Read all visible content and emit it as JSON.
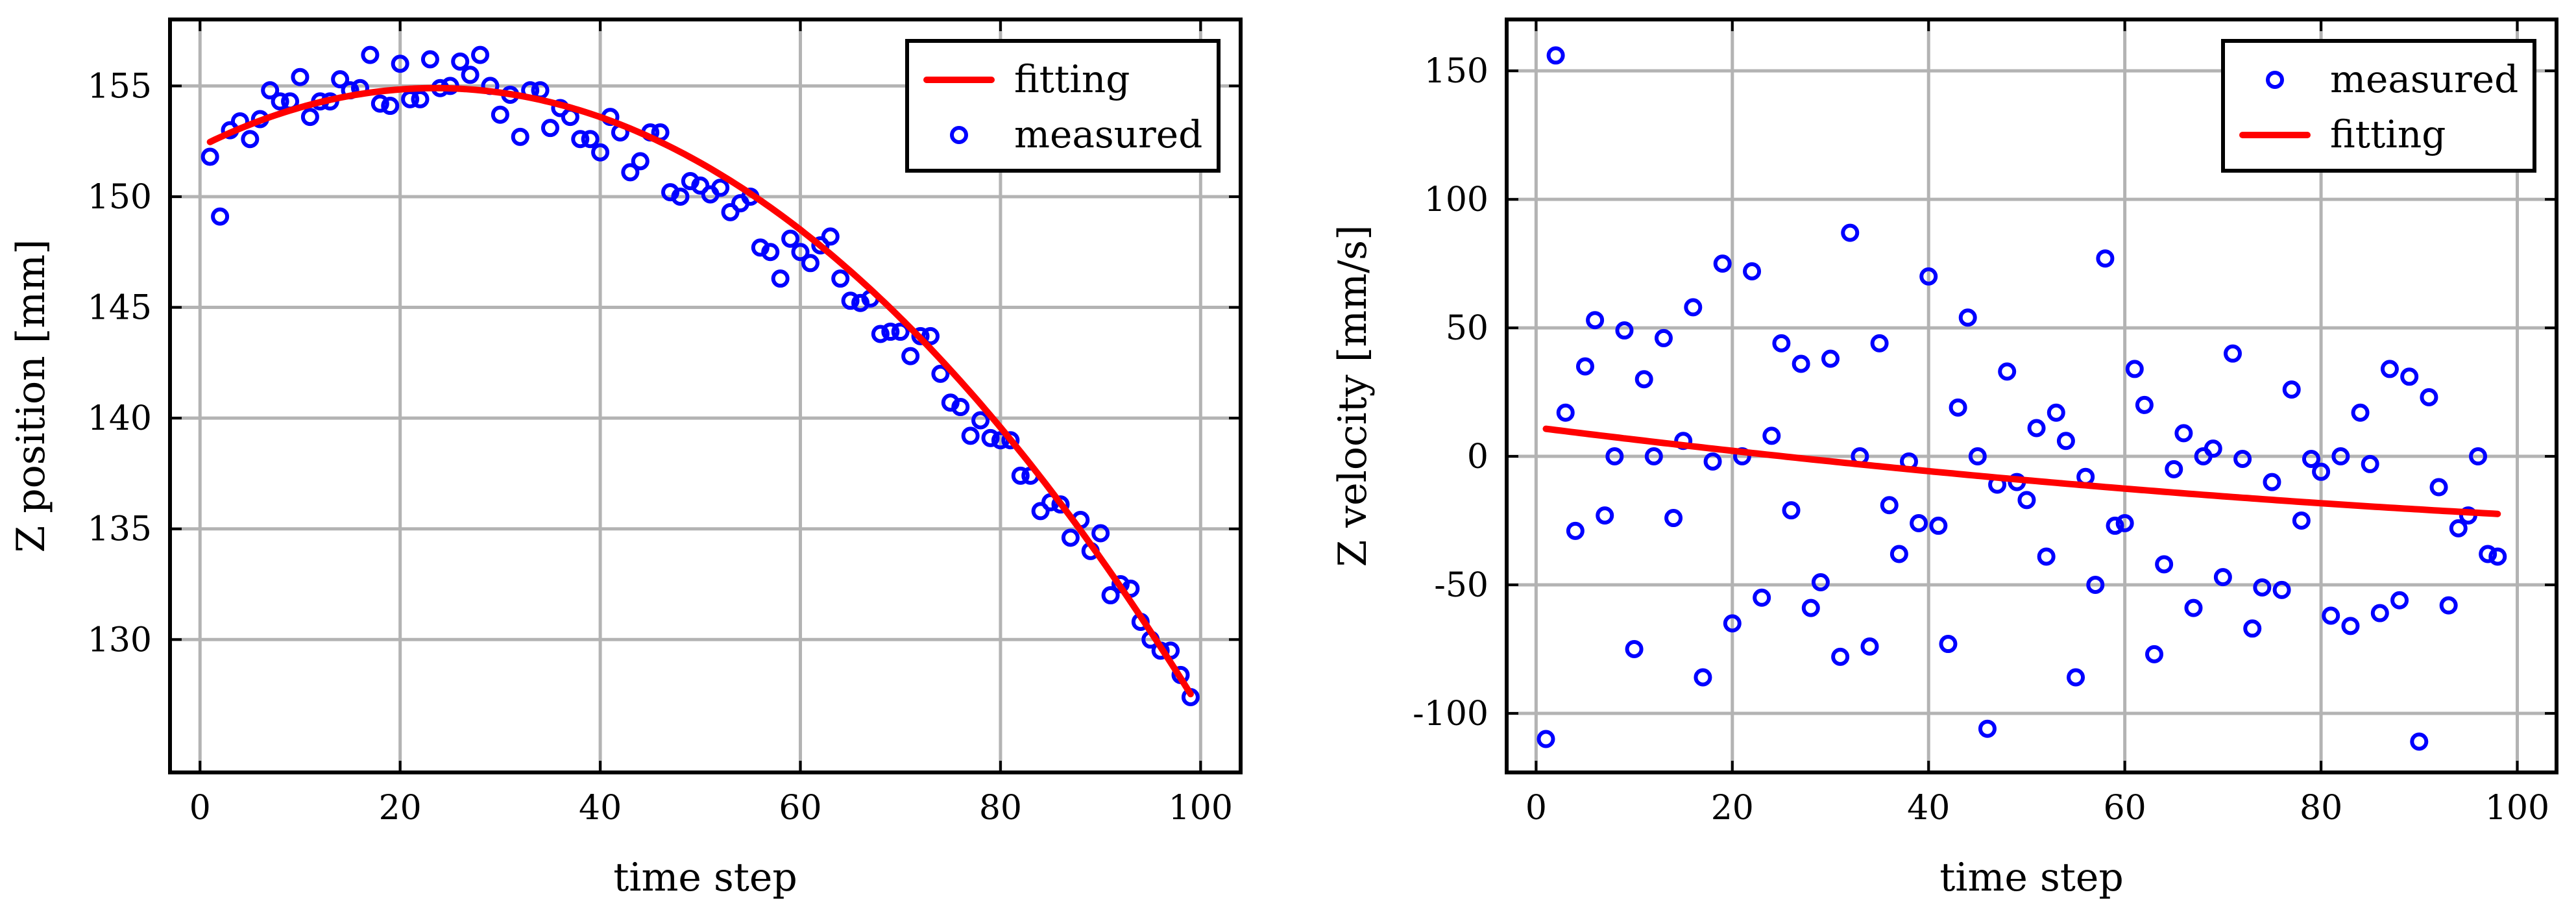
{
  "chart_data": [
    {
      "type": "scatter",
      "xlabel": "time step",
      "ylabel": "Z position [mm]",
      "xlim": [
        -3,
        104
      ],
      "ylim": [
        124,
        158
      ],
      "xticks": [
        0,
        20,
        40,
        60,
        80,
        100
      ],
      "yticks": [
        130,
        135,
        140,
        145,
        150,
        155
      ],
      "legend": {
        "placement": "top-right",
        "entries": [
          "fitting",
          "measured"
        ]
      },
      "series": [
        {
          "name": "measured",
          "kind": "scatter",
          "color": "#0000ff",
          "x": [
            1,
            2,
            3,
            4,
            5,
            6,
            7,
            8,
            9,
            10,
            11,
            12,
            13,
            14,
            15,
            16,
            17,
            18,
            19,
            20,
            21,
            22,
            23,
            24,
            25,
            26,
            27,
            28,
            29,
            30,
            31,
            32,
            33,
            34,
            35,
            36,
            37,
            38,
            39,
            40,
            41,
            42,
            43,
            44,
            45,
            46,
            47,
            48,
            49,
            50,
            51,
            52,
            53,
            54,
            55,
            56,
            57,
            58,
            59,
            60,
            61,
            62,
            63,
            64,
            65,
            66,
            67,
            68,
            69,
            70,
            71,
            72,
            73,
            74,
            75,
            76,
            77,
            78,
            79,
            80,
            81,
            82,
            83,
            84,
            85,
            86,
            87,
            88,
            89,
            90,
            91,
            92,
            93,
            94,
            95,
            96,
            97,
            98,
            99
          ],
          "y": [
            151.8,
            149.1,
            153.0,
            153.4,
            152.6,
            153.5,
            154.8,
            154.3,
            154.3,
            155.4,
            153.6,
            154.3,
            154.3,
            155.3,
            154.8,
            154.9,
            156.4,
            154.2,
            154.1,
            156.0,
            154.4,
            154.4,
            156.2,
            154.9,
            155.0,
            156.1,
            155.5,
            156.4,
            155.0,
            153.7,
            154.6,
            152.7,
            154.8,
            154.8,
            153.1,
            154.0,
            153.6,
            152.6,
            152.6,
            152.0,
            153.6,
            152.9,
            151.1,
            151.6,
            152.9,
            152.9,
            150.2,
            150.0,
            150.7,
            150.5,
            150.1,
            150.4,
            149.3,
            149.7,
            150.0,
            147.7,
            147.5,
            146.3,
            148.1,
            147.5,
            147.0,
            147.8,
            148.2,
            146.3,
            145.3,
            145.2,
            145.4,
            143.8,
            143.9,
            143.9,
            142.8,
            143.7,
            143.7,
            142.0,
            140.7,
            140.5,
            139.2,
            139.9,
            139.1,
            139.0,
            139.0,
            137.4,
            137.4,
            135.8,
            136.2,
            136.1,
            134.6,
            135.4,
            134.0,
            134.8,
            132.0,
            132.5,
            132.3,
            130.8,
            130.0,
            129.5,
            129.5,
            128.4,
            127.4
          ]
        },
        {
          "name": "fitting",
          "kind": "line",
          "color": "#ff0000",
          "model": {
            "form": "quadratic",
            "vertex_x": 23.5,
            "vertex_y": 154.9,
            "a": -0.0048
          },
          "x_range": [
            1,
            99
          ]
        }
      ]
    },
    {
      "type": "scatter",
      "xlabel": "time step",
      "ylabel": "Z velocity [mm/s]",
      "xlim": [
        -3,
        104
      ],
      "ylim": [
        -123,
        170
      ],
      "xticks": [
        0,
        20,
        40,
        60,
        80,
        100
      ],
      "yticks": [
        -100,
        -50,
        0,
        50,
        100,
        150
      ],
      "legend": {
        "placement": "top-right",
        "entries": [
          "measured",
          "fitting"
        ]
      },
      "series": [
        {
          "name": "measured",
          "kind": "scatter",
          "color": "#0000ff",
          "x": [
            1,
            2,
            3,
            4,
            5,
            6,
            7,
            8,
            9,
            10,
            11,
            12,
            13,
            14,
            15,
            16,
            17,
            18,
            19,
            20,
            21,
            22,
            23,
            24,
            25,
            26,
            27,
            28,
            29,
            30,
            31,
            32,
            33,
            34,
            35,
            36,
            37,
            38,
            39,
            40,
            41,
            42,
            43,
            44,
            45,
            46,
            47,
            48,
            49,
            50,
            51,
            52,
            53,
            54,
            55,
            56,
            57,
            58,
            59,
            60,
            61,
            62,
            63,
            64,
            65,
            66,
            67,
            68,
            69,
            70,
            71,
            72,
            73,
            74,
            75,
            76,
            77,
            78,
            79,
            80,
            81,
            82,
            83,
            84,
            85,
            86,
            87,
            88,
            89,
            90,
            91,
            92,
            93,
            94,
            95,
            96,
            97,
            98
          ],
          "y": [
            -110,
            156,
            17,
            -29,
            35,
            53,
            -23,
            0,
            49,
            -75,
            30,
            0,
            46,
            -24,
            6,
            58,
            -86,
            -2,
            75,
            -65,
            0,
            72,
            -55,
            8,
            44,
            -21,
            36,
            -59,
            -49,
            38,
            -78,
            87,
            0,
            -74,
            44,
            -19,
            -38,
            -2,
            -26,
            70,
            -27,
            -73,
            19,
            54,
            0,
            -106,
            -11,
            33,
            -10,
            -17,
            11,
            -39,
            17,
            6,
            -86,
            -8,
            -50,
            77,
            -27,
            -26,
            34,
            20,
            -77,
            -42,
            -5,
            9,
            -59,
            0,
            3,
            -47,
            40,
            -1,
            -67,
            -51,
            -10,
            -52,
            26,
            -25,
            -1,
            -6,
            -62,
            0,
            -66,
            17,
            -3,
            -61,
            34,
            -56,
            31,
            -111,
            23,
            -12,
            -58,
            -28,
            -23,
            0,
            -38,
            -39
          ]
        },
        {
          "name": "fitting",
          "kind": "line",
          "color": "#ff0000",
          "model": {
            "form": "quadratic",
            "coefficients": [
              11.2,
              -0.48,
              0.0014
            ]
          },
          "x_range": [
            1,
            98
          ]
        }
      ]
    }
  ]
}
